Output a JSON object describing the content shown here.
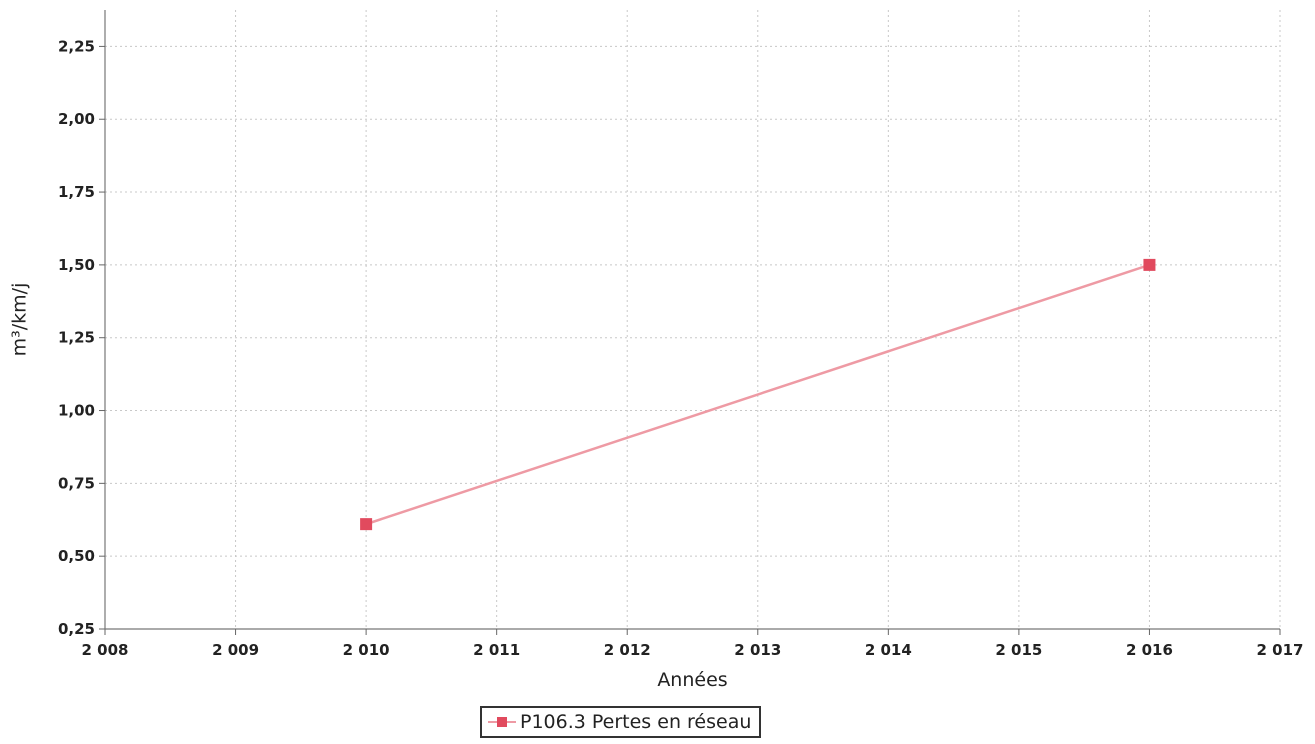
{
  "chart_data": {
    "type": "line",
    "xlabel": "Années",
    "ylabel": "m³/km/j",
    "xlim": [
      2008,
      2017
    ],
    "ylim": [
      0.25,
      2.375
    ],
    "x_ticks": [
      "2 008",
      "2 009",
      "2 010",
      "2 011",
      "2 012",
      "2 013",
      "2 014",
      "2 015",
      "2 016",
      "2 017"
    ],
    "y_ticks": [
      "0,25",
      "0,50",
      "0,75",
      "1,00",
      "1,25",
      "1,50",
      "1,75",
      "2,00",
      "2,25"
    ],
    "grid": true,
    "legend_position": "bottom-center",
    "series": [
      {
        "name": "P106.3 Pertes en réseau",
        "color": "#e14a5e",
        "line_color": "#ee9aa4",
        "marker": "square",
        "x": [
          2010,
          2016
        ],
        "y": [
          0.61,
          1.5
        ]
      }
    ]
  }
}
